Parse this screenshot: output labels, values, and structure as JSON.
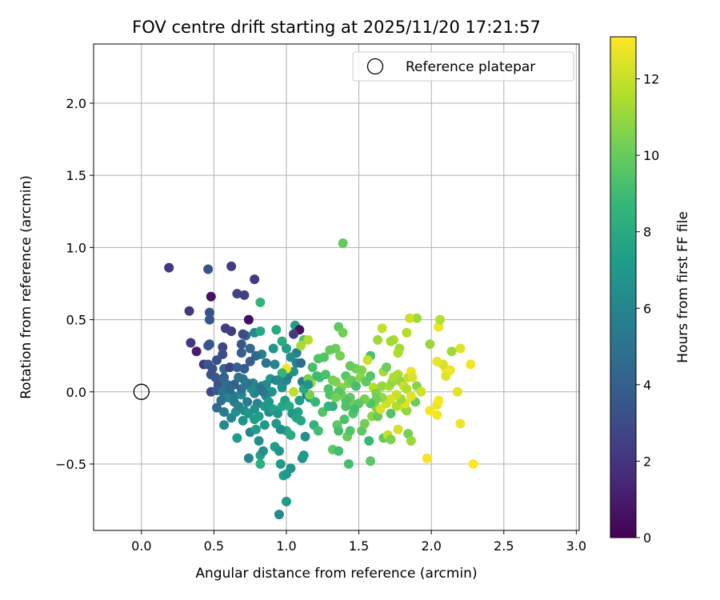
{
  "chart_data": {
    "type": "scatter",
    "title": "FOV centre drift starting at 2025/11/20 17:21:57",
    "xlabel": "Angular distance from reference (arcmin)",
    "ylabel": "Rotation from reference (arcmin)",
    "xlim": [
      -0.33,
      3.02
    ],
    "ylim": [
      -0.96,
      2.41
    ],
    "x_ticks": [
      0.0,
      0.5,
      1.0,
      1.5,
      2.0,
      2.5,
      3.0
    ],
    "x_tick_labels": [
      "0.0",
      "0.5",
      "1.0",
      "1.5",
      "2.0",
      "2.5",
      "3.0"
    ],
    "y_ticks": [
      -0.5,
      0.0,
      0.5,
      1.0,
      1.5,
      2.0
    ],
    "y_tick_labels": [
      "−0.5",
      "0.0",
      "0.5",
      "1.0",
      "1.5",
      "2.0"
    ],
    "grid": true,
    "legend": {
      "position": "top-right",
      "entries": [
        "Reference platepar"
      ]
    },
    "reference_point": {
      "x": 0.0,
      "y": 0.0
    },
    "colorbar": {
      "label": "Hours from first FF file",
      "range": [
        0,
        13.1
      ],
      "ticks": [
        0,
        2,
        4,
        6,
        8,
        10,
        12
      ],
      "tick_labels": [
        "0",
        "2",
        "4",
        "6",
        "8",
        "10",
        "12"
      ],
      "colormap": "viridis"
    },
    "colormap_stops": [
      "#440154",
      "#482878",
      "#3e4989",
      "#31688e",
      "#26828e",
      "#1f9e89",
      "#35b779",
      "#6ece58",
      "#b5de2b",
      "#fde725"
    ],
    "points": [
      [
        0.19,
        0.86,
        2.1
      ],
      [
        0.33,
        0.56,
        2.2
      ],
      [
        0.46,
        0.85,
        3.4
      ],
      [
        0.62,
        0.87,
        2.4
      ],
      [
        0.78,
        0.78,
        2.3
      ],
      [
        0.48,
        0.66,
        0.6
      ],
      [
        0.66,
        0.68,
        2.7
      ],
      [
        0.71,
        0.67,
        2.6
      ],
      [
        0.82,
        0.62,
        8.6
      ],
      [
        0.47,
        0.55,
        3.4
      ],
      [
        0.47,
        0.5,
        3.5
      ],
      [
        0.74,
        0.5,
        0.5
      ],
      [
        0.58,
        0.44,
        2.4
      ],
      [
        0.62,
        0.42,
        2.3
      ],
      [
        0.34,
        0.34,
        2.2
      ],
      [
        0.38,
        0.28,
        1.0
      ],
      [
        0.47,
        0.33,
        4.2
      ],
      [
        0.46,
        0.32,
        3.4
      ],
      [
        0.56,
        0.31,
        2.8
      ],
      [
        0.56,
        0.26,
        3.0
      ],
      [
        0.52,
        0.22,
        3.2
      ],
      [
        0.43,
        0.19,
        2.1
      ],
      [
        0.46,
        0.19,
        3.6
      ],
      [
        0.49,
        0.16,
        3.4
      ],
      [
        0.57,
        0.16,
        4.3
      ],
      [
        0.61,
        0.17,
        2.6
      ],
      [
        0.48,
        0.12,
        3.3
      ],
      [
        0.51,
        0.1,
        3.6
      ],
      [
        0.57,
        0.1,
        4.2
      ],
      [
        0.53,
        0.05,
        3.5
      ],
      [
        0.59,
        0.05,
        4.5
      ],
      [
        0.48,
        0.0,
        2.9
      ],
      [
        0.52,
        0.01,
        3.9
      ],
      [
        0.56,
        0.0,
        5.0
      ],
      [
        0.6,
        -0.04,
        5.8
      ],
      [
        0.55,
        -0.06,
        4.8
      ],
      [
        0.64,
        -0.03,
        5.3
      ],
      [
        0.52,
        -0.11,
        4.6
      ],
      [
        0.57,
        -0.14,
        5.5
      ],
      [
        0.57,
        -0.23,
        6.2
      ],
      [
        0.62,
        -0.18,
        5.9
      ],
      [
        0.65,
        -0.14,
        6.6
      ],
      [
        0.66,
        -0.32,
        7.1
      ],
      [
        0.7,
        -0.2,
        6.8
      ],
      [
        0.75,
        -0.28,
        6.0
      ],
      [
        0.74,
        -0.46,
        6.1
      ],
      [
        0.79,
        -0.26,
        7.2
      ],
      [
        0.81,
        -0.34,
        6.5
      ],
      [
        0.82,
        -0.44,
        7.5
      ],
      [
        0.82,
        -0.5,
        8.2
      ],
      [
        0.84,
        -0.41,
        6.6
      ],
      [
        0.92,
        -0.38,
        7.3
      ],
      [
        0.95,
        -0.41,
        6.8
      ],
      [
        0.96,
        -0.5,
        7.1
      ],
      [
        0.98,
        -0.58,
        7.5
      ],
      [
        1.0,
        -0.57,
        7.0
      ],
      [
        0.95,
        -0.85,
        6.3
      ],
      [
        1.0,
        -0.76,
        7.2
      ],
      [
        1.03,
        -0.53,
        6.7
      ],
      [
        1.11,
        -0.46,
        6.4
      ],
      [
        1.12,
        -0.44,
        7.1
      ],
      [
        1.13,
        -0.31,
        6.5
      ],
      [
        1.1,
        -0.2,
        7.7
      ],
      [
        1.08,
        -0.14,
        7.4
      ],
      [
        1.0,
        -0.27,
        7.9
      ],
      [
        1.03,
        -0.3,
        8.0
      ],
      [
        0.96,
        -0.26,
        6.4
      ],
      [
        0.93,
        -0.22,
        7.0
      ],
      [
        0.88,
        -0.14,
        6.2
      ],
      [
        0.85,
        -0.23,
        7.0
      ],
      [
        0.8,
        -0.08,
        5.8
      ],
      [
        0.78,
        -0.12,
        6.6
      ],
      [
        0.73,
        -0.07,
        5.5
      ],
      [
        0.69,
        -0.02,
        6.1
      ],
      [
        0.69,
        0.02,
        4.7
      ],
      [
        0.72,
        0.05,
        5.2
      ],
      [
        0.77,
        0.06,
        6.1
      ],
      [
        0.8,
        0.02,
        5.0
      ],
      [
        0.83,
        0.04,
        5.8
      ],
      [
        0.86,
        0.05,
        6.3
      ],
      [
        0.89,
        0.09,
        6.7
      ],
      [
        0.93,
        0.08,
        5.2
      ],
      [
        0.97,
        0.03,
        6.5
      ],
      [
        1.0,
        0.08,
        6.0
      ],
      [
        1.01,
        0.11,
        5.6
      ],
      [
        1.05,
        0.14,
        6.7
      ],
      [
        1.07,
        0.2,
        5.9
      ],
      [
        1.1,
        0.2,
        4.5
      ],
      [
        1.07,
        0.27,
        5.7
      ],
      [
        1.03,
        0.24,
        6.5
      ],
      [
        1.0,
        0.3,
        7.3
      ],
      [
        0.97,
        0.35,
        8.0
      ],
      [
        0.91,
        0.3,
        6.8
      ],
      [
        0.92,
        0.19,
        6.0
      ],
      [
        0.86,
        0.2,
        4.9
      ],
      [
        0.83,
        0.26,
        5.7
      ],
      [
        0.79,
        0.25,
        4.4
      ],
      [
        0.75,
        0.21,
        3.9
      ],
      [
        0.71,
        0.16,
        3.7
      ],
      [
        0.66,
        0.17,
        4.1
      ],
      [
        0.69,
        0.27,
        3.8
      ],
      [
        0.69,
        0.33,
        3.6
      ],
      [
        0.72,
        0.39,
        4.6
      ],
      [
        0.7,
        0.4,
        3.0
      ],
      [
        0.78,
        0.41,
        6.2
      ],
      [
        0.82,
        0.42,
        7.9
      ],
      [
        0.75,
        0.3,
        4.3
      ],
      [
        0.93,
        0.43,
        7.9
      ],
      [
        1.06,
        0.46,
        7.4
      ],
      [
        1.09,
        0.43,
        0.6
      ],
      [
        1.05,
        0.4,
        2.3
      ],
      [
        1.12,
        0.36,
        9.5
      ],
      [
        1.15,
        0.36,
        11.6
      ],
      [
        1.1,
        0.32,
        11.4
      ],
      [
        1.11,
        0.07,
        5.7
      ],
      [
        1.14,
        -0.02,
        5.2
      ],
      [
        1.16,
        -0.04,
        7.7
      ],
      [
        1.19,
        -0.23,
        8.4
      ],
      [
        1.22,
        -0.27,
        9.1
      ],
      [
        1.2,
        -0.07,
        8.8
      ],
      [
        1.25,
        -0.14,
        9.4
      ],
      [
        1.29,
        0.02,
        9.3
      ],
      [
        1.3,
        -0.02,
        9.4
      ],
      [
        1.29,
        -0.1,
        8.6
      ],
      [
        1.32,
        -0.1,
        8.4
      ],
      [
        1.32,
        -0.4,
        9.8
      ],
      [
        1.35,
        -0.23,
        9.8
      ],
      [
        1.36,
        -0.27,
        9.2
      ],
      [
        1.36,
        -0.41,
        9.1
      ],
      [
        1.42,
        -0.31,
        10.0
      ],
      [
        1.43,
        -0.5,
        9.1
      ],
      [
        1.44,
        -0.27,
        9.5
      ],
      [
        1.41,
        -0.1,
        9.4
      ],
      [
        1.4,
        -0.19,
        9.3
      ],
      [
        1.46,
        -0.15,
        9.5
      ],
      [
        1.47,
        -0.09,
        10.2
      ],
      [
        1.52,
        -0.27,
        9.8
      ],
      [
        1.54,
        -0.22,
        10.3
      ],
      [
        1.57,
        -0.34,
        8.8
      ],
      [
        1.58,
        -0.48,
        9.7
      ],
      [
        1.59,
        -0.17,
        10.8
      ],
      [
        1.62,
        -0.11,
        10.7
      ],
      [
        1.63,
        -0.17,
        10.0
      ],
      [
        1.65,
        -0.12,
        12.4
      ],
      [
        1.67,
        -0.32,
        10.0
      ],
      [
        1.7,
        -0.3,
        11.9
      ],
      [
        1.72,
        -0.33,
        10.5
      ],
      [
        1.72,
        -0.15,
        9.5
      ],
      [
        1.76,
        -0.1,
        11.6
      ],
      [
        1.77,
        -0.26,
        12.3
      ],
      [
        1.82,
        -0.12,
        11.9
      ],
      [
        1.83,
        -0.13,
        11.0
      ],
      [
        1.84,
        -0.29,
        10.3
      ],
      [
        1.86,
        -0.34,
        11.1
      ],
      [
        1.89,
        -0.07,
        10.1
      ],
      [
        1.97,
        -0.46,
        12.9
      ],
      [
        1.99,
        -0.13,
        12.9
      ],
      [
        2.04,
        -0.09,
        12.7
      ],
      [
        2.04,
        -0.16,
        12.9
      ],
      [
        2.05,
        -0.06,
        13.0
      ],
      [
        2.1,
        0.11,
        12.5
      ],
      [
        2.13,
        0.15,
        12.8
      ],
      [
        2.18,
        0.0,
        12.6
      ],
      [
        2.2,
        -0.22,
        12.8
      ],
      [
        2.29,
        -0.5,
        13.1
      ],
      [
        2.27,
        0.19,
        12.9
      ],
      [
        2.2,
        0.3,
        12.5
      ],
      [
        2.14,
        0.28,
        11.2
      ],
      [
        2.1,
        0.16,
        12.9
      ],
      [
        2.08,
        0.19,
        12.3
      ],
      [
        2.04,
        0.21,
        12.7
      ],
      [
        2.05,
        0.45,
        12.7
      ],
      [
        2.06,
        0.5,
        11.6
      ],
      [
        1.99,
        0.33,
        11.1
      ],
      [
        1.9,
        0.51,
        11.2
      ],
      [
        1.85,
        0.51,
        12.1
      ],
      [
        1.83,
        0.41,
        11.6
      ],
      [
        1.78,
        0.3,
        11.2
      ],
      [
        1.77,
        0.27,
        11.5
      ],
      [
        1.74,
        0.36,
        11.5
      ],
      [
        1.72,
        0.35,
        11.3
      ],
      [
        1.66,
        0.44,
        11.9
      ],
      [
        1.63,
        0.36,
        11.2
      ],
      [
        1.58,
        0.25,
        9.3
      ],
      [
        1.56,
        0.22,
        12.1
      ],
      [
        1.52,
        0.15,
        10.6
      ],
      [
        1.48,
        0.16,
        10.3
      ],
      [
        1.44,
        0.18,
        10.0
      ],
      [
        1.41,
        0.11,
        9.7
      ],
      [
        1.37,
        0.25,
        10.3
      ],
      [
        1.36,
        0.45,
        9.8
      ],
      [
        1.39,
        0.41,
        10.2
      ],
      [
        1.39,
        1.03,
        9.9
      ],
      [
        1.34,
        0.3,
        10.2
      ],
      [
        1.3,
        0.29,
        10.0
      ],
      [
        1.26,
        0.24,
        9.5
      ],
      [
        1.22,
        0.23,
        9.5
      ],
      [
        1.18,
        0.17,
        9.2
      ],
      [
        1.21,
        0.11,
        9.0
      ],
      [
        1.17,
        0.06,
        11.2
      ],
      [
        1.15,
        0.09,
        10.4
      ],
      [
        1.16,
        -0.02,
        10.4
      ],
      [
        1.23,
        0.1,
        8.9
      ],
      [
        1.27,
        0.12,
        9.3
      ],
      [
        1.32,
        0.08,
        10.2
      ],
      [
        1.34,
        0.07,
        10.5
      ],
      [
        1.38,
        0.03,
        10.6
      ],
      [
        1.43,
        0.06,
        10.5
      ],
      [
        1.45,
        0.08,
        10.0
      ],
      [
        1.48,
        0.04,
        9.2
      ],
      [
        1.51,
        0.1,
        10.7
      ],
      [
        1.55,
        0.07,
        9.8
      ],
      [
        1.58,
        0.11,
        9.6
      ],
      [
        1.6,
        0.03,
        11.6
      ],
      [
        1.62,
        -0.01,
        10.5
      ],
      [
        1.66,
        0.04,
        11.0
      ],
      [
        1.67,
        0.14,
        11.3
      ],
      [
        1.69,
        0.17,
        10.1
      ],
      [
        1.71,
        0.04,
        11.3
      ],
      [
        1.73,
        0.07,
        10.9
      ],
      [
        1.74,
        0.1,
        11.4
      ],
      [
        1.77,
        0.12,
        11.5
      ],
      [
        1.79,
        0.07,
        11.0
      ],
      [
        1.81,
        0.04,
        12.0
      ],
      [
        1.83,
        0.02,
        11.6
      ],
      [
        1.84,
        0.1,
        11.9
      ],
      [
        1.86,
        0.14,
        12.7
      ],
      [
        1.87,
        0.1,
        12.4
      ],
      [
        1.9,
        0.04,
        10.7
      ],
      [
        1.93,
        0.0,
        12.2
      ],
      [
        1.86,
        -0.03,
        12.5
      ],
      [
        1.82,
        -0.08,
        12.5
      ],
      [
        1.79,
        -0.05,
        11.1
      ],
      [
        1.76,
        -0.02,
        12.0
      ],
      [
        1.72,
        -0.05,
        12.3
      ],
      [
        1.69,
        -0.08,
        12.1
      ],
      [
        1.66,
        -0.04,
        11.0
      ],
      [
        1.62,
        -0.05,
        10.2
      ],
      [
        1.58,
        -0.08,
        9.5
      ],
      [
        1.54,
        -0.05,
        10.4
      ],
      [
        1.5,
        -0.08,
        9.7
      ],
      [
        1.47,
        -0.12,
        9.1
      ],
      [
        1.44,
        -0.04,
        9.9
      ],
      [
        1.41,
        -0.06,
        9.4
      ],
      [
        1.38,
        -0.02,
        10.1
      ],
      [
        1.36,
        0.0,
        9.6
      ],
      [
        1.34,
        -0.04,
        10.3
      ],
      [
        1.05,
        0.0,
        11.8
      ],
      [
        1.0,
        0.16,
        12.7
      ],
      [
        0.97,
        0.13,
        8.7
      ],
      [
        0.94,
        0.08,
        6.3
      ],
      [
        0.9,
        0.0,
        6.6
      ],
      [
        0.86,
        -0.03,
        6.1
      ],
      [
        0.84,
        0.0,
        5.4
      ],
      [
        0.82,
        0.02,
        5.0
      ],
      [
        0.78,
        -0.01,
        5.6
      ],
      [
        0.76,
        0.02,
        6.3
      ],
      [
        0.73,
        0.06,
        5.1
      ],
      [
        0.7,
        0.09,
        5.3
      ],
      [
        0.67,
        0.1,
        4.9
      ],
      [
        0.64,
        0.05,
        3.9
      ],
      [
        0.61,
        0.02,
        4.4
      ],
      [
        0.64,
        -0.07,
        5.4
      ],
      [
        0.67,
        -0.1,
        5.9
      ],
      [
        0.71,
        -0.13,
        6.3
      ],
      [
        0.74,
        -0.15,
        6.8
      ],
      [
        0.78,
        -0.19,
        7.1
      ],
      [
        0.81,
        -0.17,
        7.3
      ],
      [
        0.85,
        -0.1,
        6.9
      ],
      [
        0.88,
        -0.07,
        7.0
      ],
      [
        0.91,
        -0.12,
        7.5
      ],
      [
        0.94,
        -0.15,
        6.9
      ],
      [
        0.97,
        -0.1,
        7.8
      ],
      [
        0.99,
        -0.06,
        7.4
      ],
      [
        1.02,
        -0.1,
        8.0
      ],
      [
        1.04,
        -0.15,
        6.8
      ],
      [
        1.07,
        -0.18,
        7.6
      ],
      [
        1.09,
        -0.06,
        7.2
      ],
      [
        1.12,
        0.02,
        7.9
      ],
      [
        1.15,
        0.05,
        6.8
      ]
    ]
  }
}
